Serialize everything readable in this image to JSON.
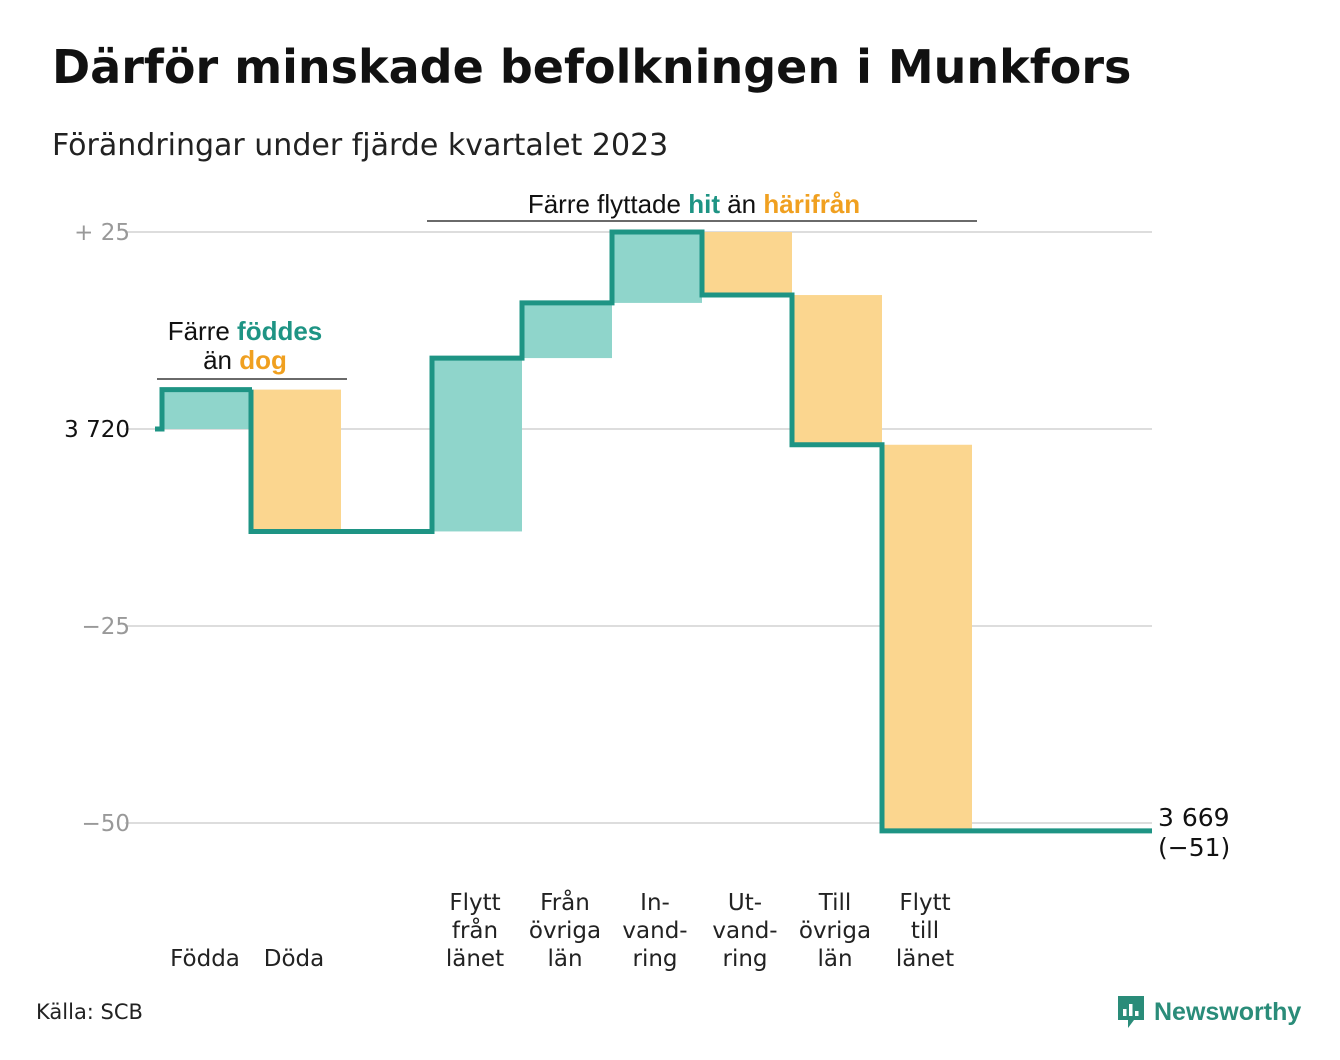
{
  "title": "Därför minskade befolkningen i Munkfors",
  "subtitle": "Förändringar under fjärde kvartalet 2023",
  "source": "Källa: SCB",
  "brand": {
    "name": "Newsworthy",
    "icon": "newsworthy-logo-icon"
  },
  "colors": {
    "increase": "#8fd5cb",
    "decrease": "#fbd68f",
    "line": "#1e9484",
    "teal_text": "#1e9484",
    "orange_text": "#f0a020",
    "grid": "#dddddd",
    "tick": "#999999"
  },
  "chart_data": {
    "type": "waterfall",
    "start_value": 3720,
    "end_value": 3669,
    "end_label": [
      "3 669",
      "(−51)"
    ],
    "ylim": [
      -57,
      27
    ],
    "y_ticks": [
      {
        "value": 25,
        "label": "+  25",
        "color": "tick"
      },
      {
        "value": 0,
        "label": "3  720",
        "color": "dark"
      },
      {
        "value": -25,
        "label": "−25",
        "color": "tick"
      },
      {
        "value": -50,
        "label": "−50",
        "color": "tick"
      }
    ],
    "bars": [
      {
        "label": [
          "Födda"
        ],
        "value": 5
      },
      {
        "label": [
          "Döda"
        ],
        "value": -18
      },
      {
        "label": [
          "Flytt",
          "från",
          "länet"
        ],
        "value": 22
      },
      {
        "label": [
          "Från",
          "övriga",
          "län"
        ],
        "value": 7
      },
      {
        "label": [
          "In-",
          "vand-",
          "ring"
        ],
        "value": 9
      },
      {
        "label": [
          "Ut-",
          "vand-",
          "ring"
        ],
        "value": -8
      },
      {
        "label": [
          "Till",
          "övriga",
          "län"
        ],
        "value": -19
      },
      {
        "label": [
          "Flytt",
          "till",
          "länet"
        ],
        "value": -49
      }
    ],
    "annotations": [
      {
        "lines": [
          [
            {
              "text": "Färre ",
              "color": "dark"
            },
            {
              "text": "föddes",
              "color": "teal"
            }
          ],
          [
            {
              "text": "än ",
              "color": "dark"
            },
            {
              "text": "dog",
              "color": "orange"
            }
          ]
        ]
      },
      {
        "lines": [
          [
            {
              "text": "Färre flyttade ",
              "color": "dark"
            },
            {
              "text": "hit",
              "color": "teal"
            },
            {
              "text": " än ",
              "color": "dark"
            },
            {
              "text": "härifrån",
              "color": "orange"
            }
          ]
        ]
      }
    ]
  }
}
